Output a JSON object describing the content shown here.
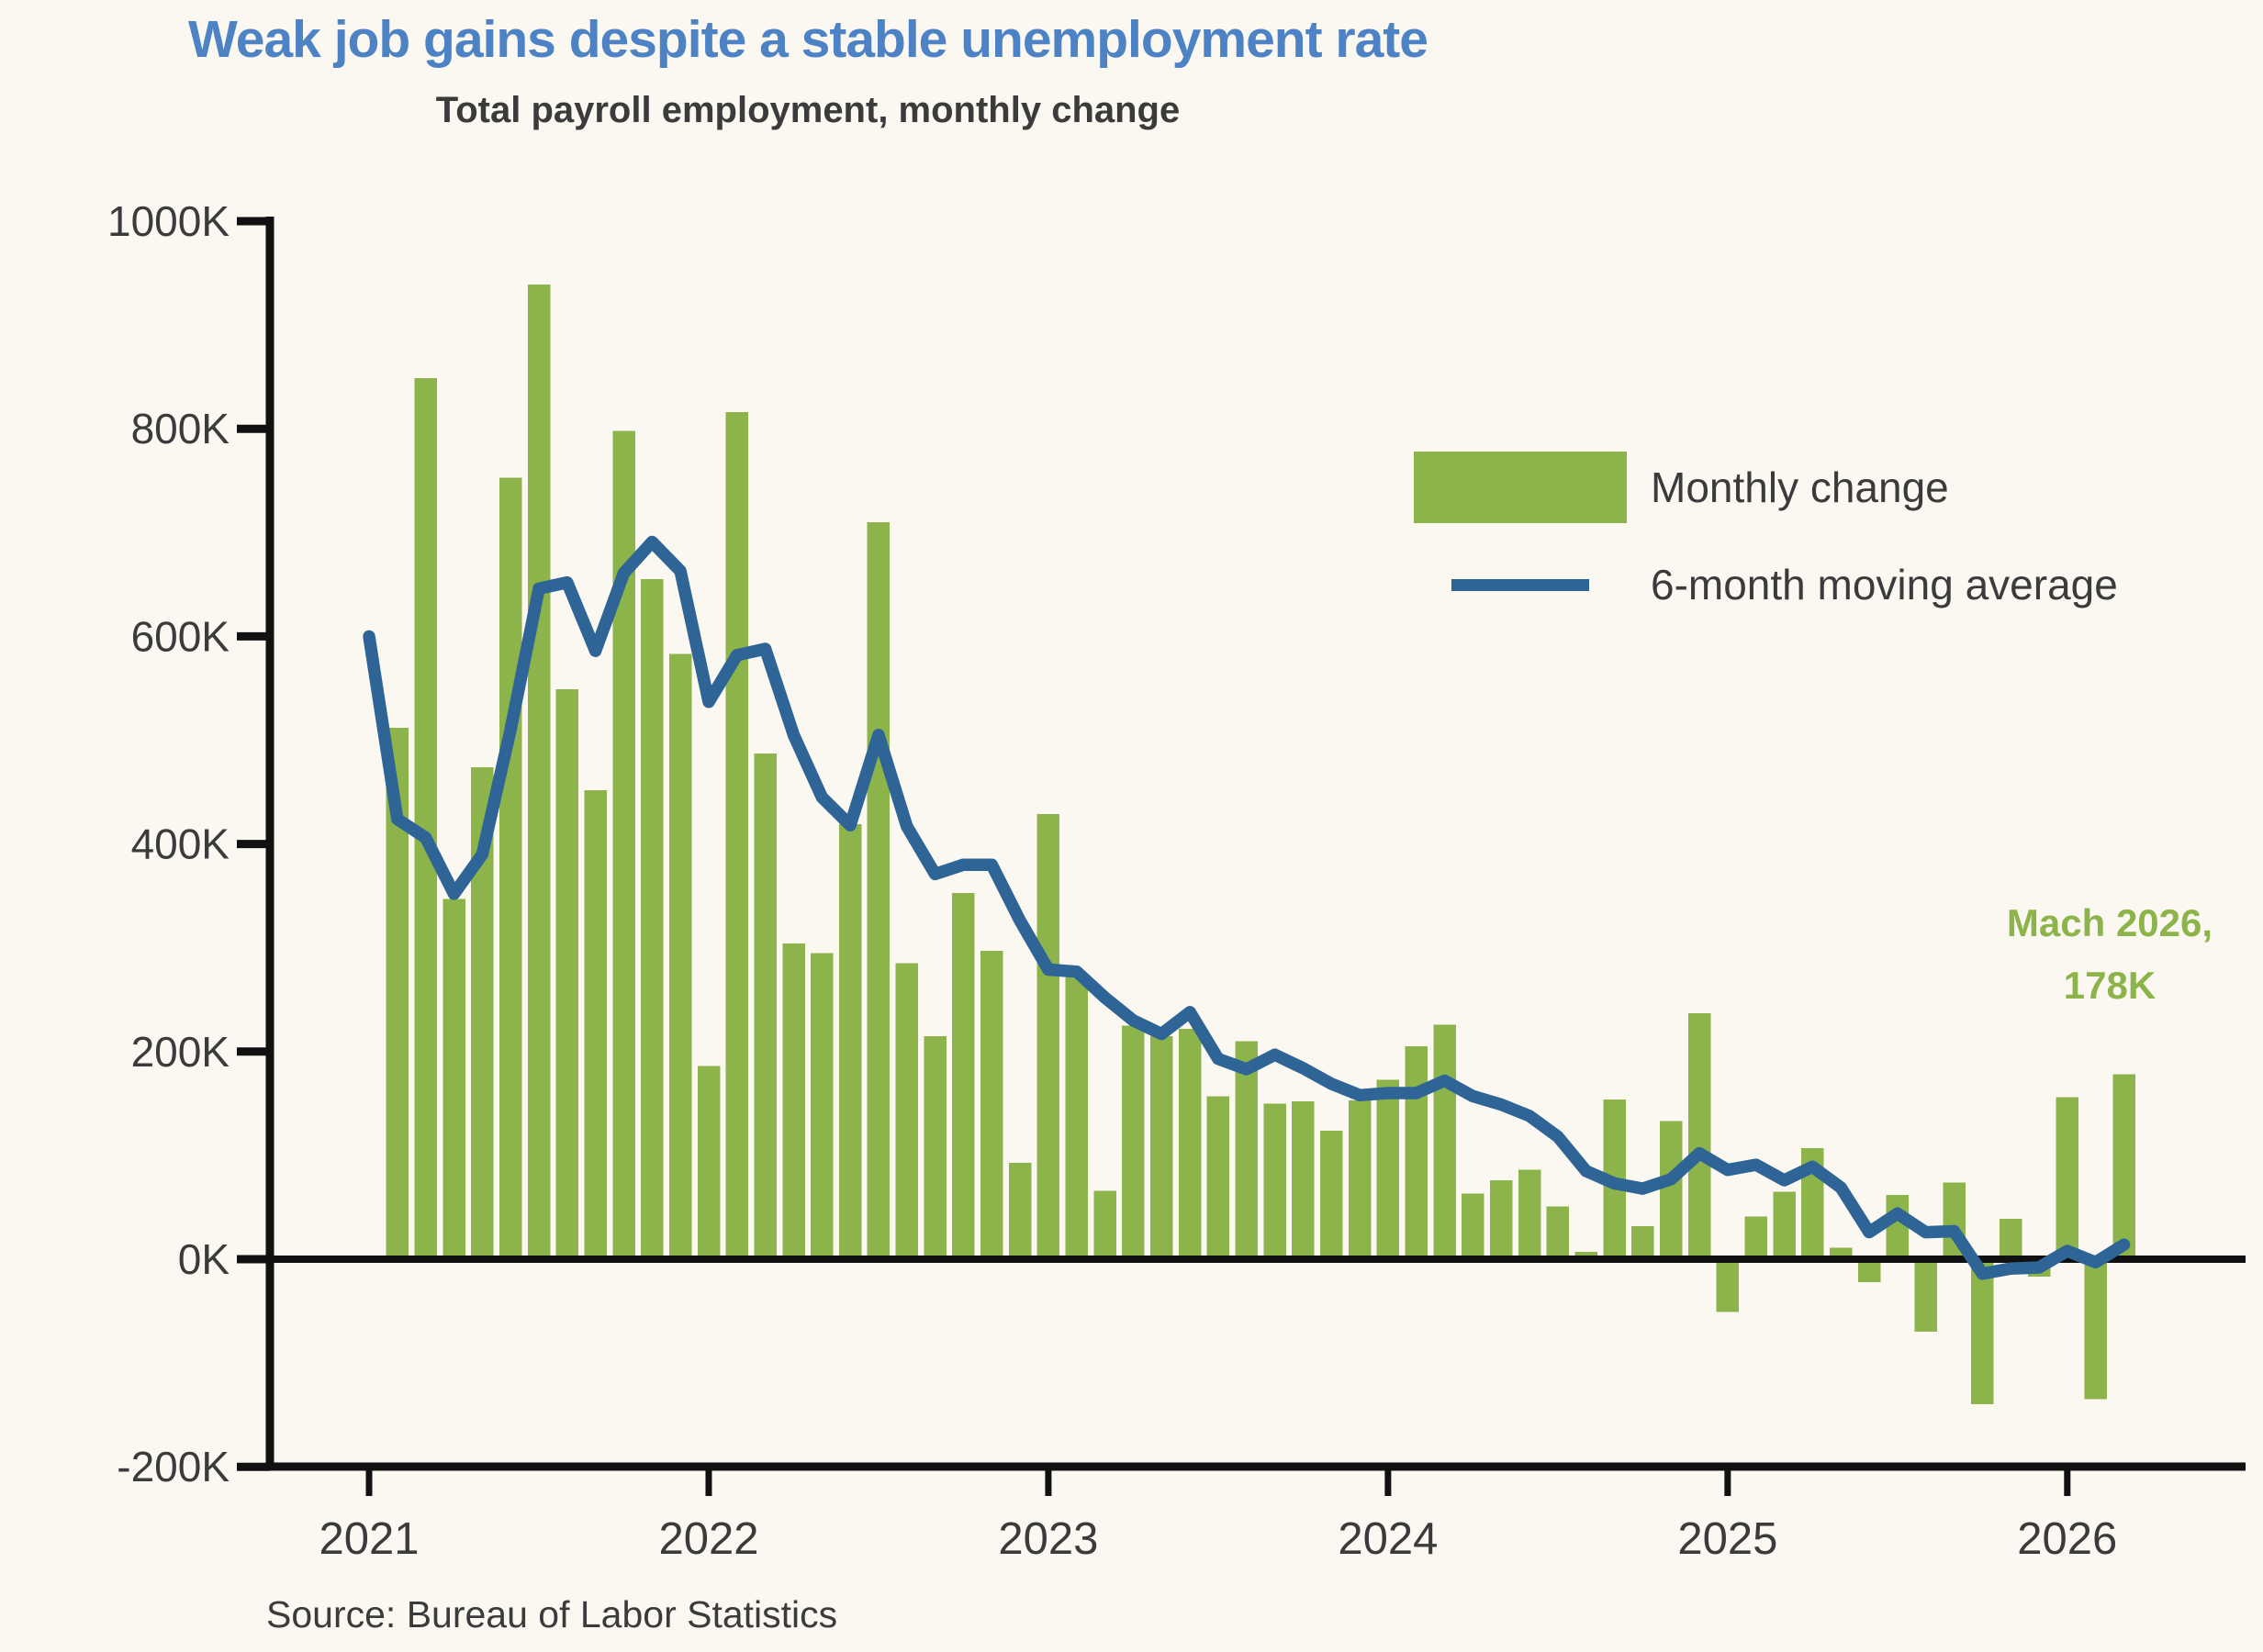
{
  "header": {
    "title": "Weak job gains despite a stable unemployment rate"
  },
  "legend": {
    "items": [
      {
        "label": "Monthly change",
        "swatch": "bar-swatch"
      },
      {
        "label": "6-month moving average",
        "swatch": "line-swatch"
      }
    ]
  },
  "annotation": {
    "line1": "Mach 2026,",
    "line2": "178K"
  },
  "source_note": "Source: Bureau of Labor Statistics",
  "colors": {
    "background": "#FAF8F1",
    "bar_green": "#8DB44B",
    "line_blue": "#2E6496",
    "title_blue": "#4D82C4",
    "text_dark": "#3B3B3B",
    "axis_black": "#111111"
  },
  "chart_data": {
    "type": "bar",
    "title": "Total payroll employment, monthly change",
    "xlabel": "",
    "ylabel": "",
    "ylim": [
      -200,
      1000
    ],
    "grid": false,
    "legend_position": "upper right",
    "value_unit": "K",
    "categories": [
      "Jan 2021",
      "Feb 2021",
      "Mar 2021",
      "Apr 2021",
      "May 2021",
      "Jun 2021",
      "Jul 2021",
      "Aug 2021",
      "Sep 2021",
      "Oct 2021",
      "Nov 2021",
      "Dec 2021",
      "Jan 2022",
      "Feb 2022",
      "Mar 2022",
      "Apr 2022",
      "May 2022",
      "Jun 2022",
      "Jul 2022",
      "Aug 2022",
      "Sep 2022",
      "Oct 2022",
      "Nov 2022",
      "Dec 2022",
      "Jan 2023",
      "Feb 2023",
      "Mar 2023",
      "Apr 2023",
      "May 2023",
      "Jun 2023",
      "Jul 2023",
      "Aug 2023",
      "Sep 2023",
      "Oct 2023",
      "Nov 2023",
      "Dec 2023",
      "Jan 2024",
      "Feb 2024",
      "Mar 2024",
      "Apr 2024",
      "May 2024",
      "Jun 2024",
      "Jul 2024",
      "Aug 2024",
      "Sep 2024",
      "Oct 2024",
      "Nov 2024",
      "Dec 2024",
      "Jan 2025",
      "Feb 2025",
      "Mar 2025",
      "Apr 2025",
      "May 2025",
      "Jun 2025",
      "Jul 2025",
      "Aug 2025",
      "Sep 2025",
      "Oct 2025",
      "Nov 2025",
      "Dec 2025",
      "Jan 2026",
      "Feb 2026",
      "Mar 2026"
    ],
    "series": [
      {
        "name": "Monthly change",
        "type": "bar",
        "values": [
          null,
          512,
          849,
          347,
          474,
          753,
          939,
          549,
          452,
          798,
          655,
          583,
          186,
          816,
          487,
          304,
          295,
          419,
          710,
          285,
          215,
          353,
          297,
          93,
          429,
          272,
          66,
          225,
          215,
          222,
          157,
          210,
          150,
          152,
          124,
          153,
          173,
          205,
          226,
          63,
          76,
          86,
          51,
          7,
          154,
          32,
          133,
          237,
          -50,
          41,
          65,
          107,
          11,
          -21,
          62,
          -69,
          74,
          -139,
          39,
          -16,
          156,
          -134,
          178
        ]
      },
      {
        "name": "6-month moving average",
        "type": "line",
        "values": [
          600,
          424,
          406,
          352,
          390,
          510,
          646,
          652,
          586,
          661,
          691,
          663,
          537,
          582,
          588,
          505,
          445,
          418,
          505,
          417,
          371,
          380,
          380,
          326,
          279,
          277,
          252,
          230,
          217,
          238,
          193,
          183,
          197,
          184,
          169,
          158,
          160,
          160,
          172,
          157,
          149,
          138,
          118,
          85,
          73,
          68,
          77,
          102,
          86,
          91,
          76,
          89,
          69,
          26,
          44,
          26,
          27,
          -14,
          -9,
          -8,
          8,
          -3,
          14
        ]
      }
    ],
    "yticks": [
      {
        "value": 1000,
        "label": "1000K"
      },
      {
        "value": 800,
        "label": "800K"
      },
      {
        "value": 600,
        "label": "600K"
      },
      {
        "value": 400,
        "label": "400K"
      },
      {
        "value": 200,
        "label": "200K"
      },
      {
        "value": 0,
        "label": "0K"
      },
      {
        "value": -200,
        "label": "-200K"
      }
    ],
    "xticks": [
      {
        "index": 0,
        "label": "2021"
      },
      {
        "index": 12,
        "label": "2022"
      },
      {
        "index": 24,
        "label": "2023"
      },
      {
        "index": 36,
        "label": "2024"
      },
      {
        "index": 48,
        "label": "2025"
      },
      {
        "index": 60,
        "label": "2026"
      }
    ],
    "annotation_target": "Mar 2026"
  }
}
